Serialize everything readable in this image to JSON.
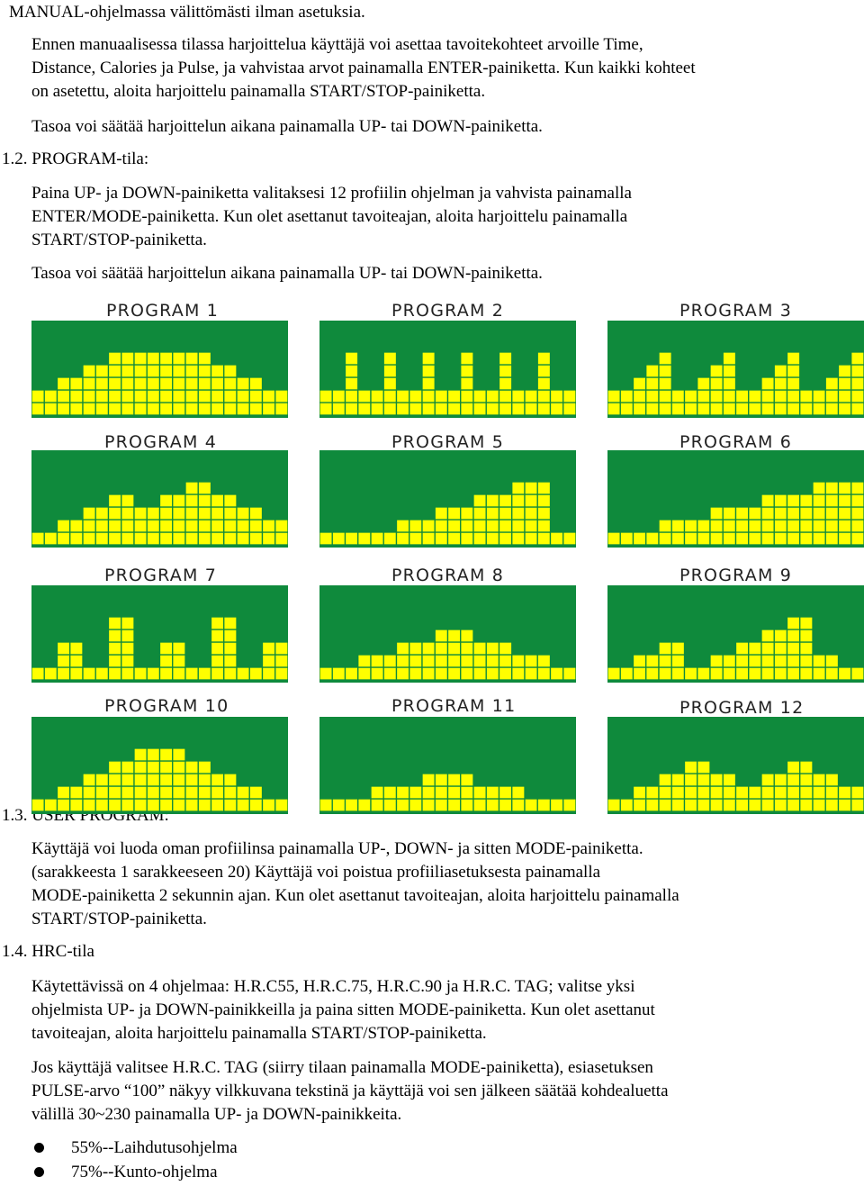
{
  "text": {
    "intro_line": "MANUAL-ohjelmassa välittömästi ilman asetuksia.",
    "manual_p1": [
      "Ennen manuaalisessa tilassa harjoittelua käyttäjä voi asettaa tavoitekohteet arvoille Time,",
      "Distance, Calories ja Pulse, ja vahvistaa arvot painamalla ENTER-painiketta. Kun kaikki kohteet",
      "on asetettu, aloita harjoittelu painamalla START/STOP-painiketta."
    ],
    "manual_p2": "Tasoa voi säätää harjoittelun aikana painamalla UP- tai DOWN-painiketta.",
    "section_12": "1.2.  PROGRAM-tila:",
    "program_p1": [
      "Paina UP- ja DOWN-painiketta valitaksesi 12 profiilin ohjelman ja vahvista painamalla",
      "ENTER/MODE-painiketta. Kun olet asettanut tavoiteajan, aloita harjoittelu painamalla",
      "START/STOP-painiketta."
    ],
    "program_p2": "Tasoa voi säätää harjoittelun aikana painamalla UP- tai DOWN-painiketta.",
    "section_13": "1.3.  USER PROGRAM:",
    "user_p1": [
      "Käyttäjä voi luoda oman profiilinsa painamalla UP-, DOWN- ja sitten MODE-painiketta.",
      "(sarakkeesta 1 sarakkeeseen 20) Käyttäjä voi poistua profiiliasetuksesta painamalla",
      "MODE-painiketta 2 sekunnin ajan. Kun olet asettanut tavoiteajan, aloita harjoittelu painamalla",
      "START/STOP-painiketta."
    ],
    "section_14": "1.4.  HRC-tila",
    "hrc_p1": [
      "Käytettävissä on 4 ohjelmaa: H.R.C55, H.R.C.75, H.R.C.90 ja H.R.C. TAG; valitse yksi",
      "ohjelmista UP- ja DOWN-painikkeilla ja paina sitten MODE-painiketta. Kun olet asettanut",
      "tavoiteajan, aloita harjoittelu painamalla START/STOP-painiketta."
    ],
    "hrc_p2": [
      "Jos käyttäjä valitsee H.R.C. TAG (siirry tilaan painamalla MODE-painiketta), esiasetuksen",
      "PULSE-arvo “100” näkyy vilkkuvana tekstinä ja käyttäjä voi sen jälkeen säätää kohdealuetta",
      "välillä 30~230 painamalla UP- ja DOWN-painikkeita."
    ],
    "bullets": [
      "55%--Laihdutusohjelma",
      "75%--Kunto-ohjelma"
    ]
  },
  "colors": {
    "panel_bg": "#0f8a3c",
    "block": "#ffff00",
    "block_line": "#0f8a3c"
  },
  "programs": [
    {
      "label": "PROGRAM 1",
      "profile": [
        2,
        2,
        3,
        3,
        4,
        4,
        5,
        5,
        5,
        5,
        5,
        5,
        5,
        5,
        4,
        4,
        3,
        3,
        2,
        2
      ]
    },
    {
      "label": "PROGRAM 2",
      "profile": [
        2,
        2,
        5,
        2,
        2,
        5,
        2,
        2,
        5,
        2,
        2,
        5,
        2,
        2,
        5,
        2,
        2,
        5,
        2,
        2
      ]
    },
    {
      "label": "PROGRAM 3",
      "profile": [
        2,
        2,
        3,
        4,
        5,
        2,
        2,
        3,
        4,
        5,
        2,
        2,
        3,
        4,
        5,
        2,
        2,
        3,
        4,
        5
      ]
    },
    {
      "label": "PROGRAM 4",
      "profile": [
        1,
        1,
        2,
        2,
        3,
        3,
        4,
        4,
        3,
        3,
        4,
        4,
        5,
        5,
        4,
        4,
        3,
        3,
        2,
        2
      ]
    },
    {
      "label": "PROGRAM 5",
      "profile": [
        1,
        1,
        1,
        1,
        1,
        1,
        2,
        2,
        2,
        3,
        3,
        3,
        4,
        4,
        4,
        5,
        5,
        5,
        1,
        1
      ]
    },
    {
      "label": "PROGRAM 6",
      "profile": [
        1,
        1,
        1,
        1,
        2,
        2,
        2,
        2,
        3,
        3,
        3,
        3,
        4,
        4,
        4,
        4,
        5,
        5,
        5,
        5
      ]
    },
    {
      "label": "PROGRAM 7",
      "profile": [
        1,
        1,
        3,
        3,
        1,
        1,
        5,
        5,
        1,
        1,
        3,
        3,
        1,
        1,
        5,
        5,
        1,
        1,
        3,
        3
      ]
    },
    {
      "label": "PROGRAM 8",
      "profile": [
        1,
        1,
        1,
        2,
        2,
        2,
        3,
        3,
        3,
        4,
        4,
        4,
        3,
        3,
        3,
        2,
        2,
        2,
        1,
        1
      ]
    },
    {
      "label": "PROGRAM 9",
      "profile": [
        1,
        1,
        2,
        2,
        3,
        3,
        1,
        1,
        2,
        2,
        3,
        3,
        4,
        4,
        5,
        5,
        2,
        2,
        1,
        1
      ]
    },
    {
      "label": "PROGRAM 10",
      "profile": [
        1,
        1,
        2,
        2,
        3,
        3,
        4,
        4,
        5,
        5,
        5,
        5,
        4,
        4,
        3,
        3,
        2,
        2,
        1,
        1
      ]
    },
    {
      "label": "PROGRAM 11",
      "profile": [
        1,
        1,
        1,
        1,
        2,
        2,
        2,
        2,
        3,
        3,
        3,
        3,
        2,
        2,
        2,
        2,
        1,
        1,
        1,
        1
      ]
    },
    {
      "label": "PROGRAM 12",
      "profile": [
        1,
        1,
        2,
        2,
        3,
        3,
        4,
        4,
        3,
        3,
        2,
        2,
        3,
        3,
        4,
        4,
        3,
        3,
        2,
        2
      ]
    }
  ]
}
